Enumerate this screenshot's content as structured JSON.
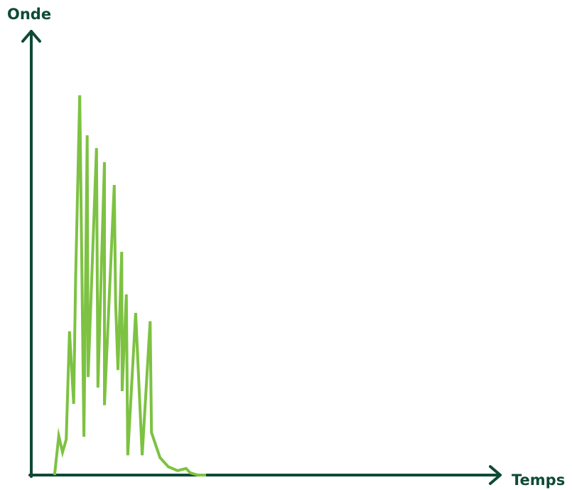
{
  "chart_data": {
    "type": "line",
    "y_label": "Onde",
    "x_label": "Temps",
    "xlim": [
      0,
      100
    ],
    "ylim": [
      0,
      100
    ],
    "x": [
      5.0,
      5.9,
      6.7,
      7.5,
      8.2,
      9.1,
      9.5,
      10.4,
      11.3,
      12.0,
      12.2,
      14.0,
      14.3,
      15.7,
      15.7,
      17.8,
      18.1,
      18.6,
      19.4,
      19.5,
      20.4,
      20.7,
      22.4,
      23.8,
      25.5,
      25.8,
      27.6,
      29.4,
      31.4,
      33.2,
      34.1,
      35.7,
      37.5
    ],
    "series": [
      {
        "color": "#7dc242",
        "values": [
          0,
          8.9,
          5.2,
          8.1,
          32.7,
          16.2,
          43.7,
          86.4,
          8.7,
          77.3,
          22.3,
          74.4,
          19.9,
          71.2,
          15.9,
          66.0,
          39.3,
          23.9,
          50.8,
          19.1,
          41.1,
          4.5,
          36.9,
          4.5,
          35.0,
          9.7,
          4.0,
          1.9,
          1.0,
          1.5,
          0.5,
          0,
          0
        ]
      }
    ]
  }
}
